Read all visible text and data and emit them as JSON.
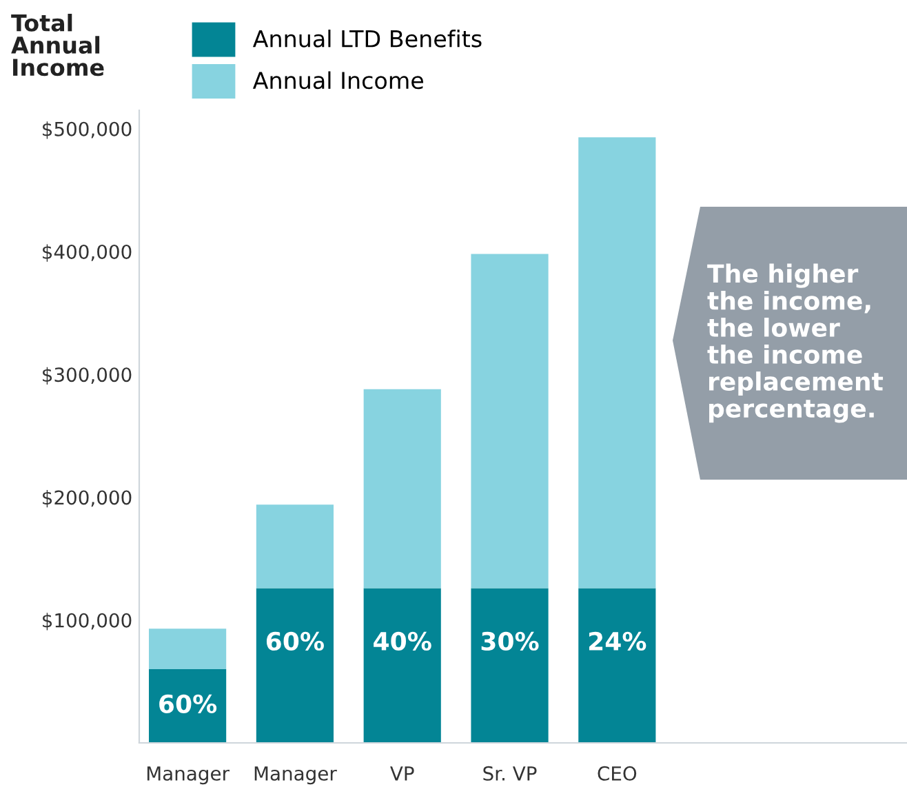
{
  "chart_data": {
    "type": "bar",
    "stacked": true,
    "ylabel": "Total Annual Income",
    "categories": [
      "Manager",
      "Manager",
      "VP",
      "Sr. VP",
      "CEO"
    ],
    "series": [
      {
        "name": "Annual LTD Benefits",
        "color": "#038595",
        "values": [
          60000,
          126000,
          126000,
          126000,
          126000
        ]
      },
      {
        "name": "Annual Income",
        "color": "#87d3e0",
        "values": [
          33000,
          68000,
          162000,
          272000,
          367000
        ]
      }
    ],
    "ylim": [
      0,
      515000
    ],
    "yticks": [
      {
        "value": 100000,
        "label": "$100,000"
      },
      {
        "value": 200000,
        "label": "$200,000"
      },
      {
        "value": 300000,
        "label": "$300,000"
      },
      {
        "value": 400000,
        "label": "$400,000"
      },
      {
        "value": 500000,
        "label": "$500,000"
      }
    ],
    "legend": "top left",
    "grid": false,
    "annotations": [
      "60%",
      "60%",
      "40%",
      "30%",
      "24%",
      "The higher\nthe income,\nthe lower\nthe income\nreplacement\npercentage."
    ]
  }
}
